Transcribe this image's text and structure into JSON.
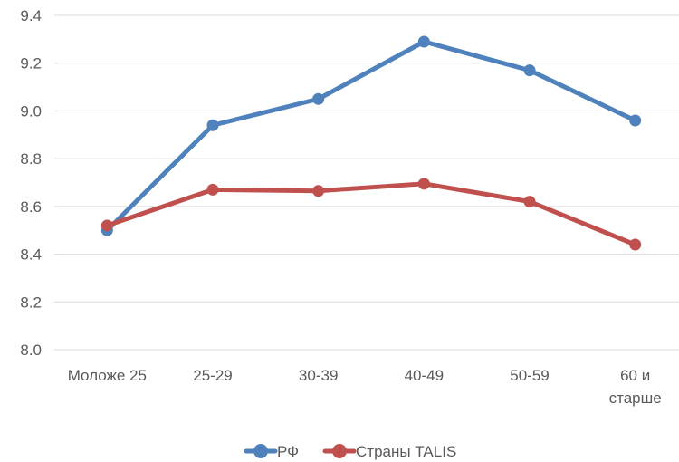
{
  "chart_data": {
    "type": "line",
    "title": "",
    "xlabel": "",
    "ylabel": "",
    "categories": [
      [
        "Моложе 25"
      ],
      [
        "25-29"
      ],
      [
        "30-39"
      ],
      [
        "40-49"
      ],
      [
        "50-59"
      ],
      [
        "60 и",
        "старше"
      ]
    ],
    "ylim": [
      8.0,
      9.4
    ],
    "yticks": [
      "8.0",
      "8.2",
      "8.4",
      "8.6",
      "8.8",
      "9.0",
      "9.2",
      "9.4"
    ],
    "grid": true,
    "legend_position": "bottom",
    "series": [
      {
        "name": "РФ",
        "color": "#4F81BD",
        "values": [
          8.5,
          8.94,
          9.05,
          9.29,
          9.17,
          8.96
        ]
      },
      {
        "name": "Страны TALIS",
        "color": "#C0504D",
        "values": [
          8.52,
          8.67,
          8.665,
          8.695,
          8.62,
          8.44
        ]
      }
    ]
  }
}
